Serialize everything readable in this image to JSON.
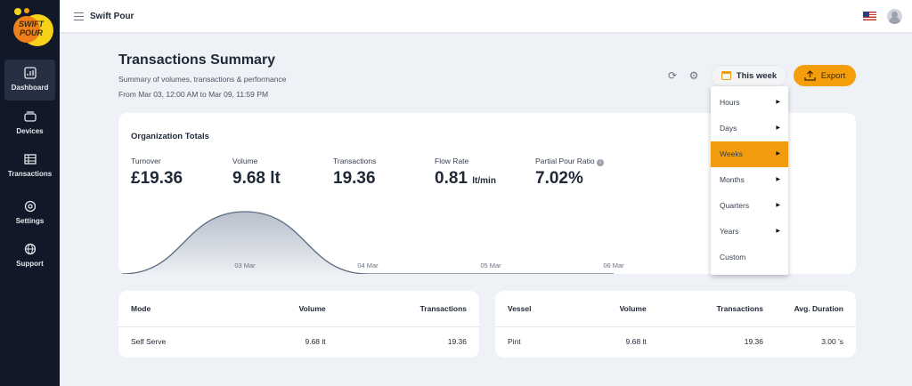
{
  "app": {
    "title": "Swift Pour",
    "logo_text": "SWIFT POUR"
  },
  "sidebar": {
    "items": [
      {
        "label": "Dashboard",
        "icon": "chart-icon",
        "active": true
      },
      {
        "label": "Devices",
        "icon": "device-icon"
      },
      {
        "label": "Transactions",
        "icon": "list-icon"
      },
      {
        "label": "Settings",
        "icon": "gear-icon"
      },
      {
        "label": "Support",
        "icon": "globe-icon"
      }
    ]
  },
  "header": {
    "title": "Transactions Summary",
    "subtitle": "Summary of volumes, transactions & performance",
    "range": "From Mar 03, 12:00 AM to Mar 09, 11:59 PM",
    "period_label": "This week",
    "export_label": "Export"
  },
  "colors": {
    "accent": "#f59e0b",
    "sidebar": "#111827"
  },
  "menu": {
    "items": [
      {
        "label": "Hours",
        "sub": true
      },
      {
        "label": "Days",
        "sub": true
      },
      {
        "label": "Weeks",
        "sub": true,
        "selected": true
      },
      {
        "label": "Months",
        "sub": true
      },
      {
        "label": "Quarters",
        "sub": true
      },
      {
        "label": "Years",
        "sub": true
      },
      {
        "label": "Custom",
        "sub": false
      }
    ]
  },
  "totals": {
    "title": "Organization Totals",
    "metrics": [
      {
        "label": "Turnover",
        "value": "£19.36",
        "unit": ""
      },
      {
        "label": "Volume",
        "value": "9.68 lt",
        "unit": ""
      },
      {
        "label": "Transactions",
        "value": "19.36",
        "unit": ""
      },
      {
        "label": "Flow Rate",
        "value": "0.81",
        "unit": "lt/min"
      },
      {
        "label": "Partial Pour Ratio",
        "value": "7.02%",
        "unit": "",
        "info": true
      }
    ]
  },
  "chart_data": {
    "type": "area",
    "categories": [
      "03 Mar",
      "04 Mar",
      "05 Mar",
      "06 Mar"
    ],
    "values": [
      9.68,
      0,
      0,
      0
    ],
    "grid": false
  },
  "mode_table": {
    "headers": [
      "Mode",
      "Volume",
      "Transactions"
    ],
    "rows": [
      [
        "Self Serve",
        "9.68 lt",
        "19.36"
      ]
    ]
  },
  "vessel_table": {
    "headers": [
      "Vessel",
      "Volume",
      "Transactions",
      "Avg. Duration"
    ],
    "rows": [
      [
        "Pint",
        "9.68 lt",
        "19.36",
        "3.00 's"
      ]
    ]
  }
}
